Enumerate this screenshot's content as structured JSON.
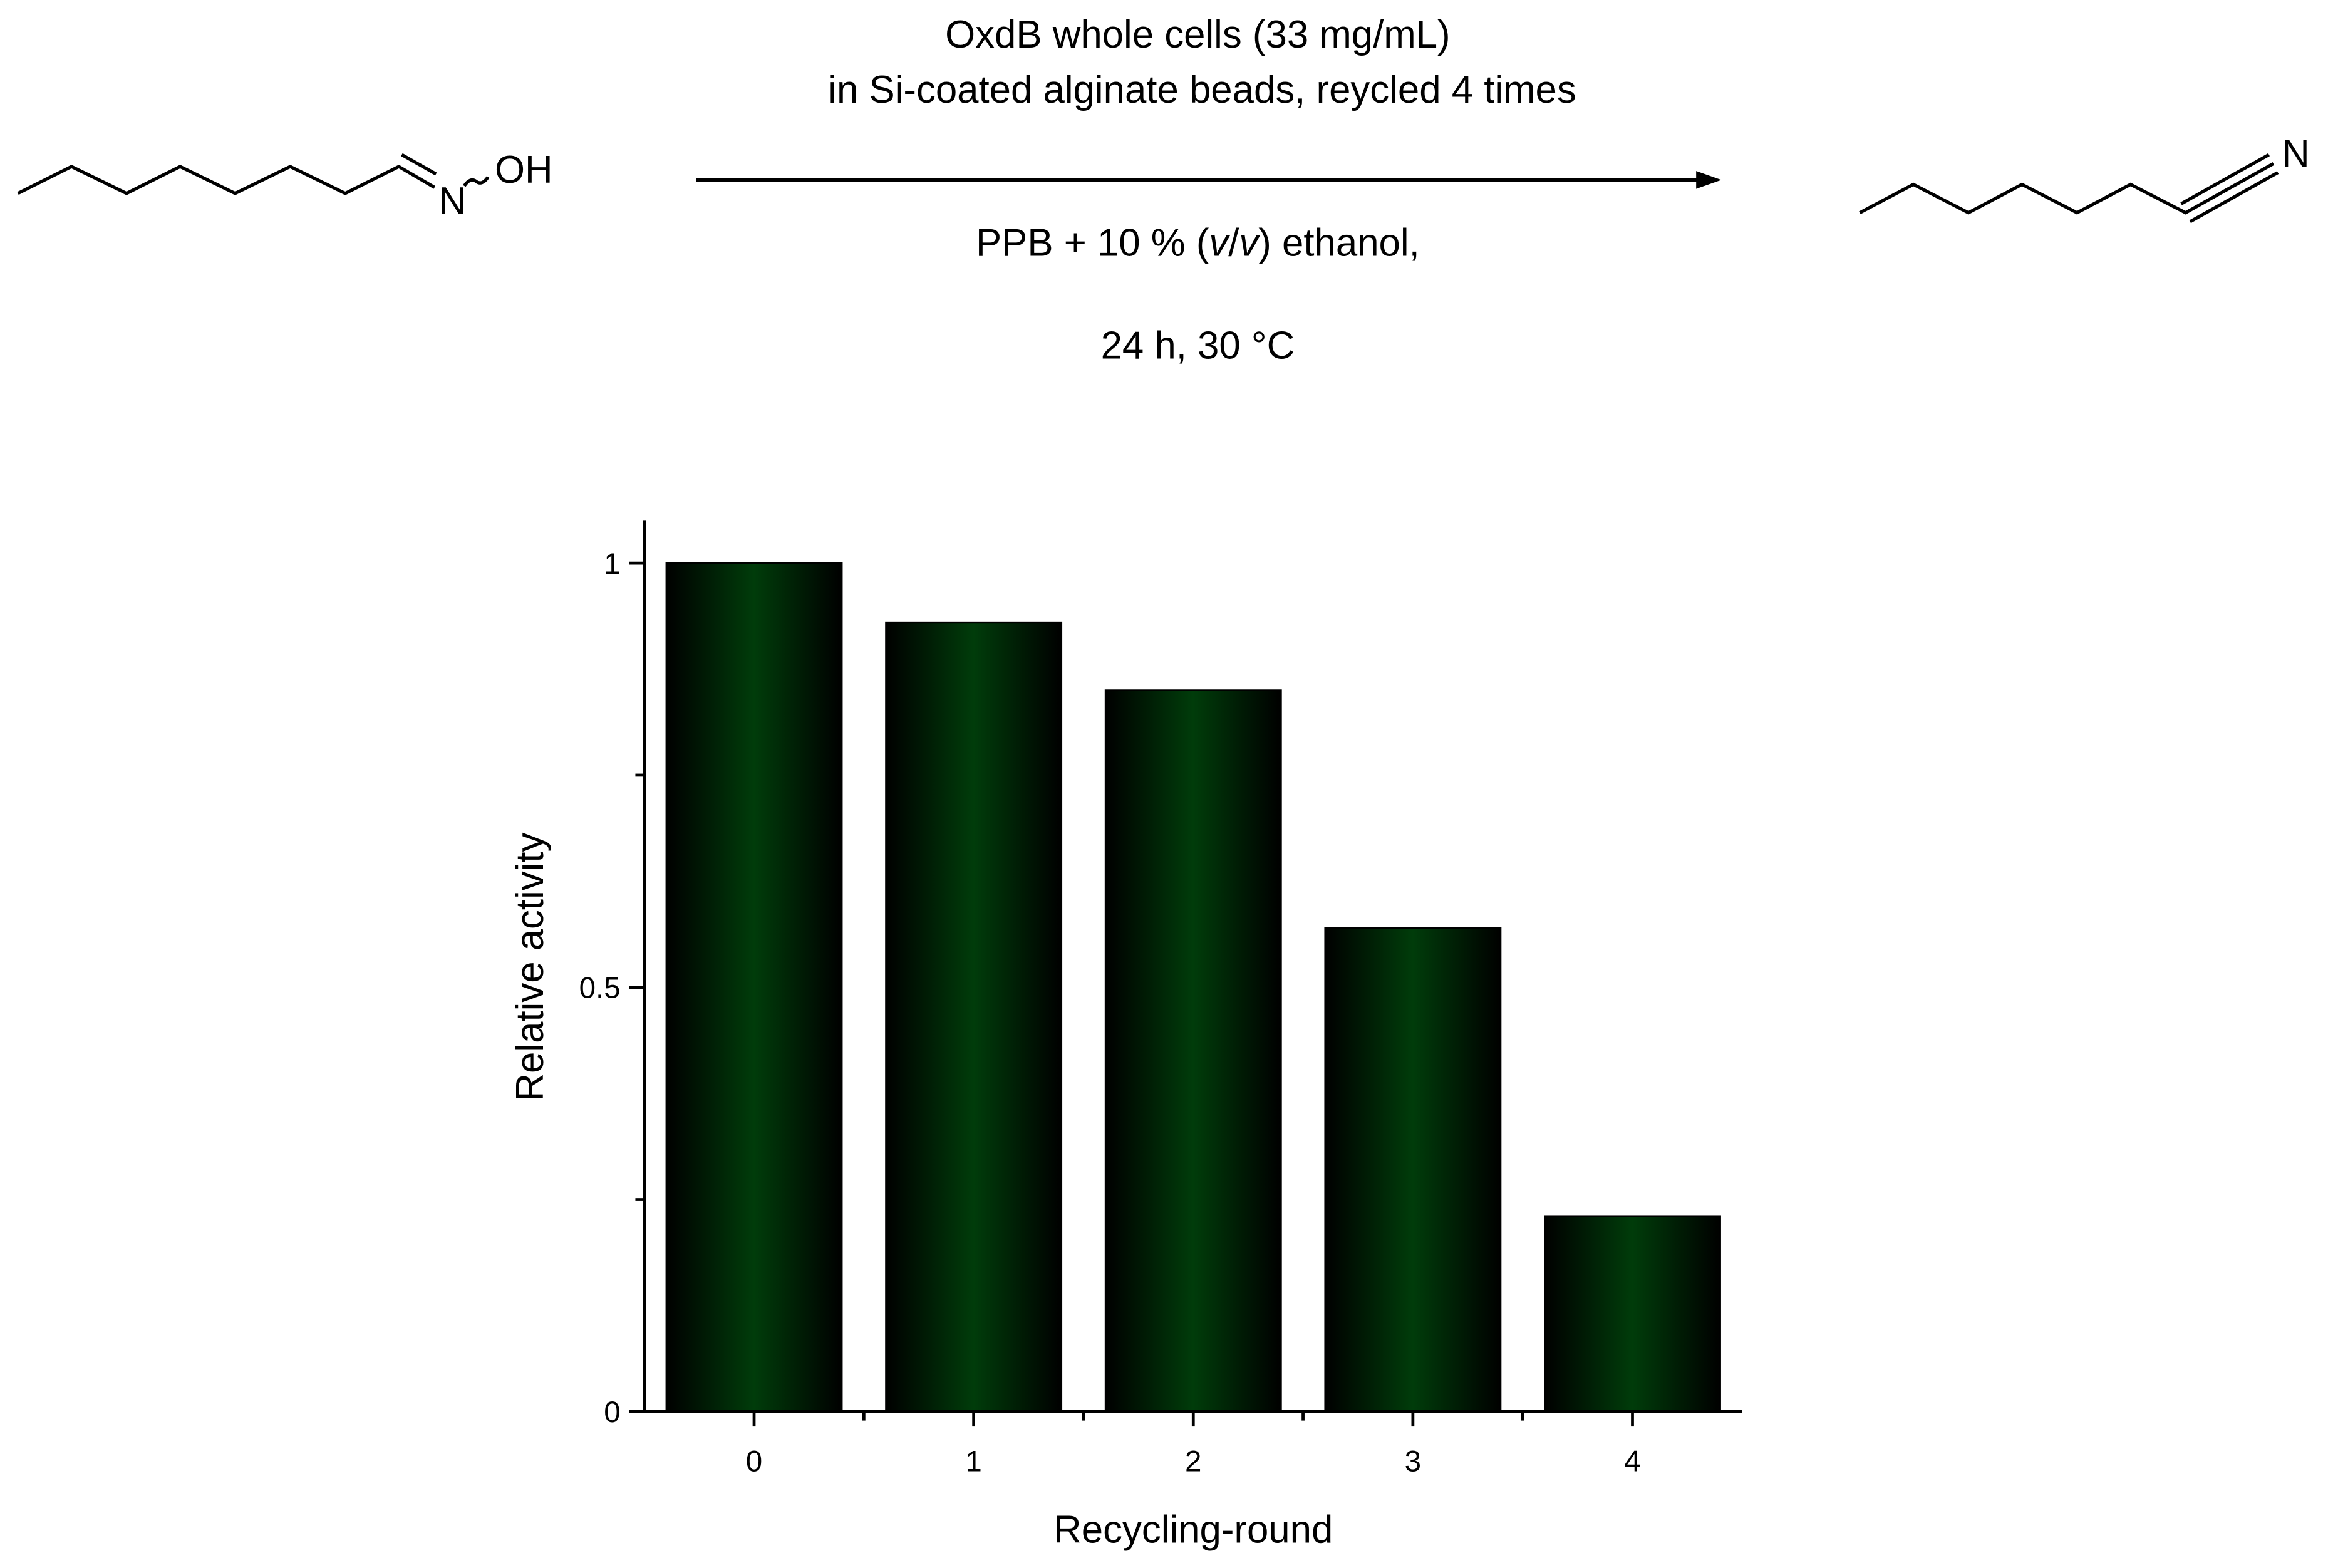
{
  "scheme": {
    "conditions_above": [
      "OxdB whole cells (33 mg/mL)",
      "in Si-coated alginate beads, reycled 4 times"
    ],
    "conditions_below_parts": [
      "PPB + 10 % (",
      "v",
      "/",
      "v",
      ") ethanol,"
    ],
    "conditions_time_temp": "24 h, 30 °C",
    "reactant_labels": [
      "N",
      "OH"
    ],
    "product_label": "N"
  },
  "chart_data": {
    "type": "bar",
    "x_label": "Recycling-round",
    "y_label": "Relative activity",
    "categories": [
      "0",
      "1",
      "2",
      "3",
      "4"
    ],
    "values": [
      1.0,
      0.93,
      0.85,
      0.57,
      0.23
    ],
    "color": "#003c0a",
    "ylim": [
      0,
      1.05
    ],
    "yticks": [
      0,
      0.5,
      1
    ],
    "y_minor_ticks": [
      0.25,
      0.75
    ],
    "xlim": [
      -0.5,
      4.5
    ],
    "x_minor_ticks": [
      0.5,
      1.5,
      2.5,
      3.5
    ]
  }
}
